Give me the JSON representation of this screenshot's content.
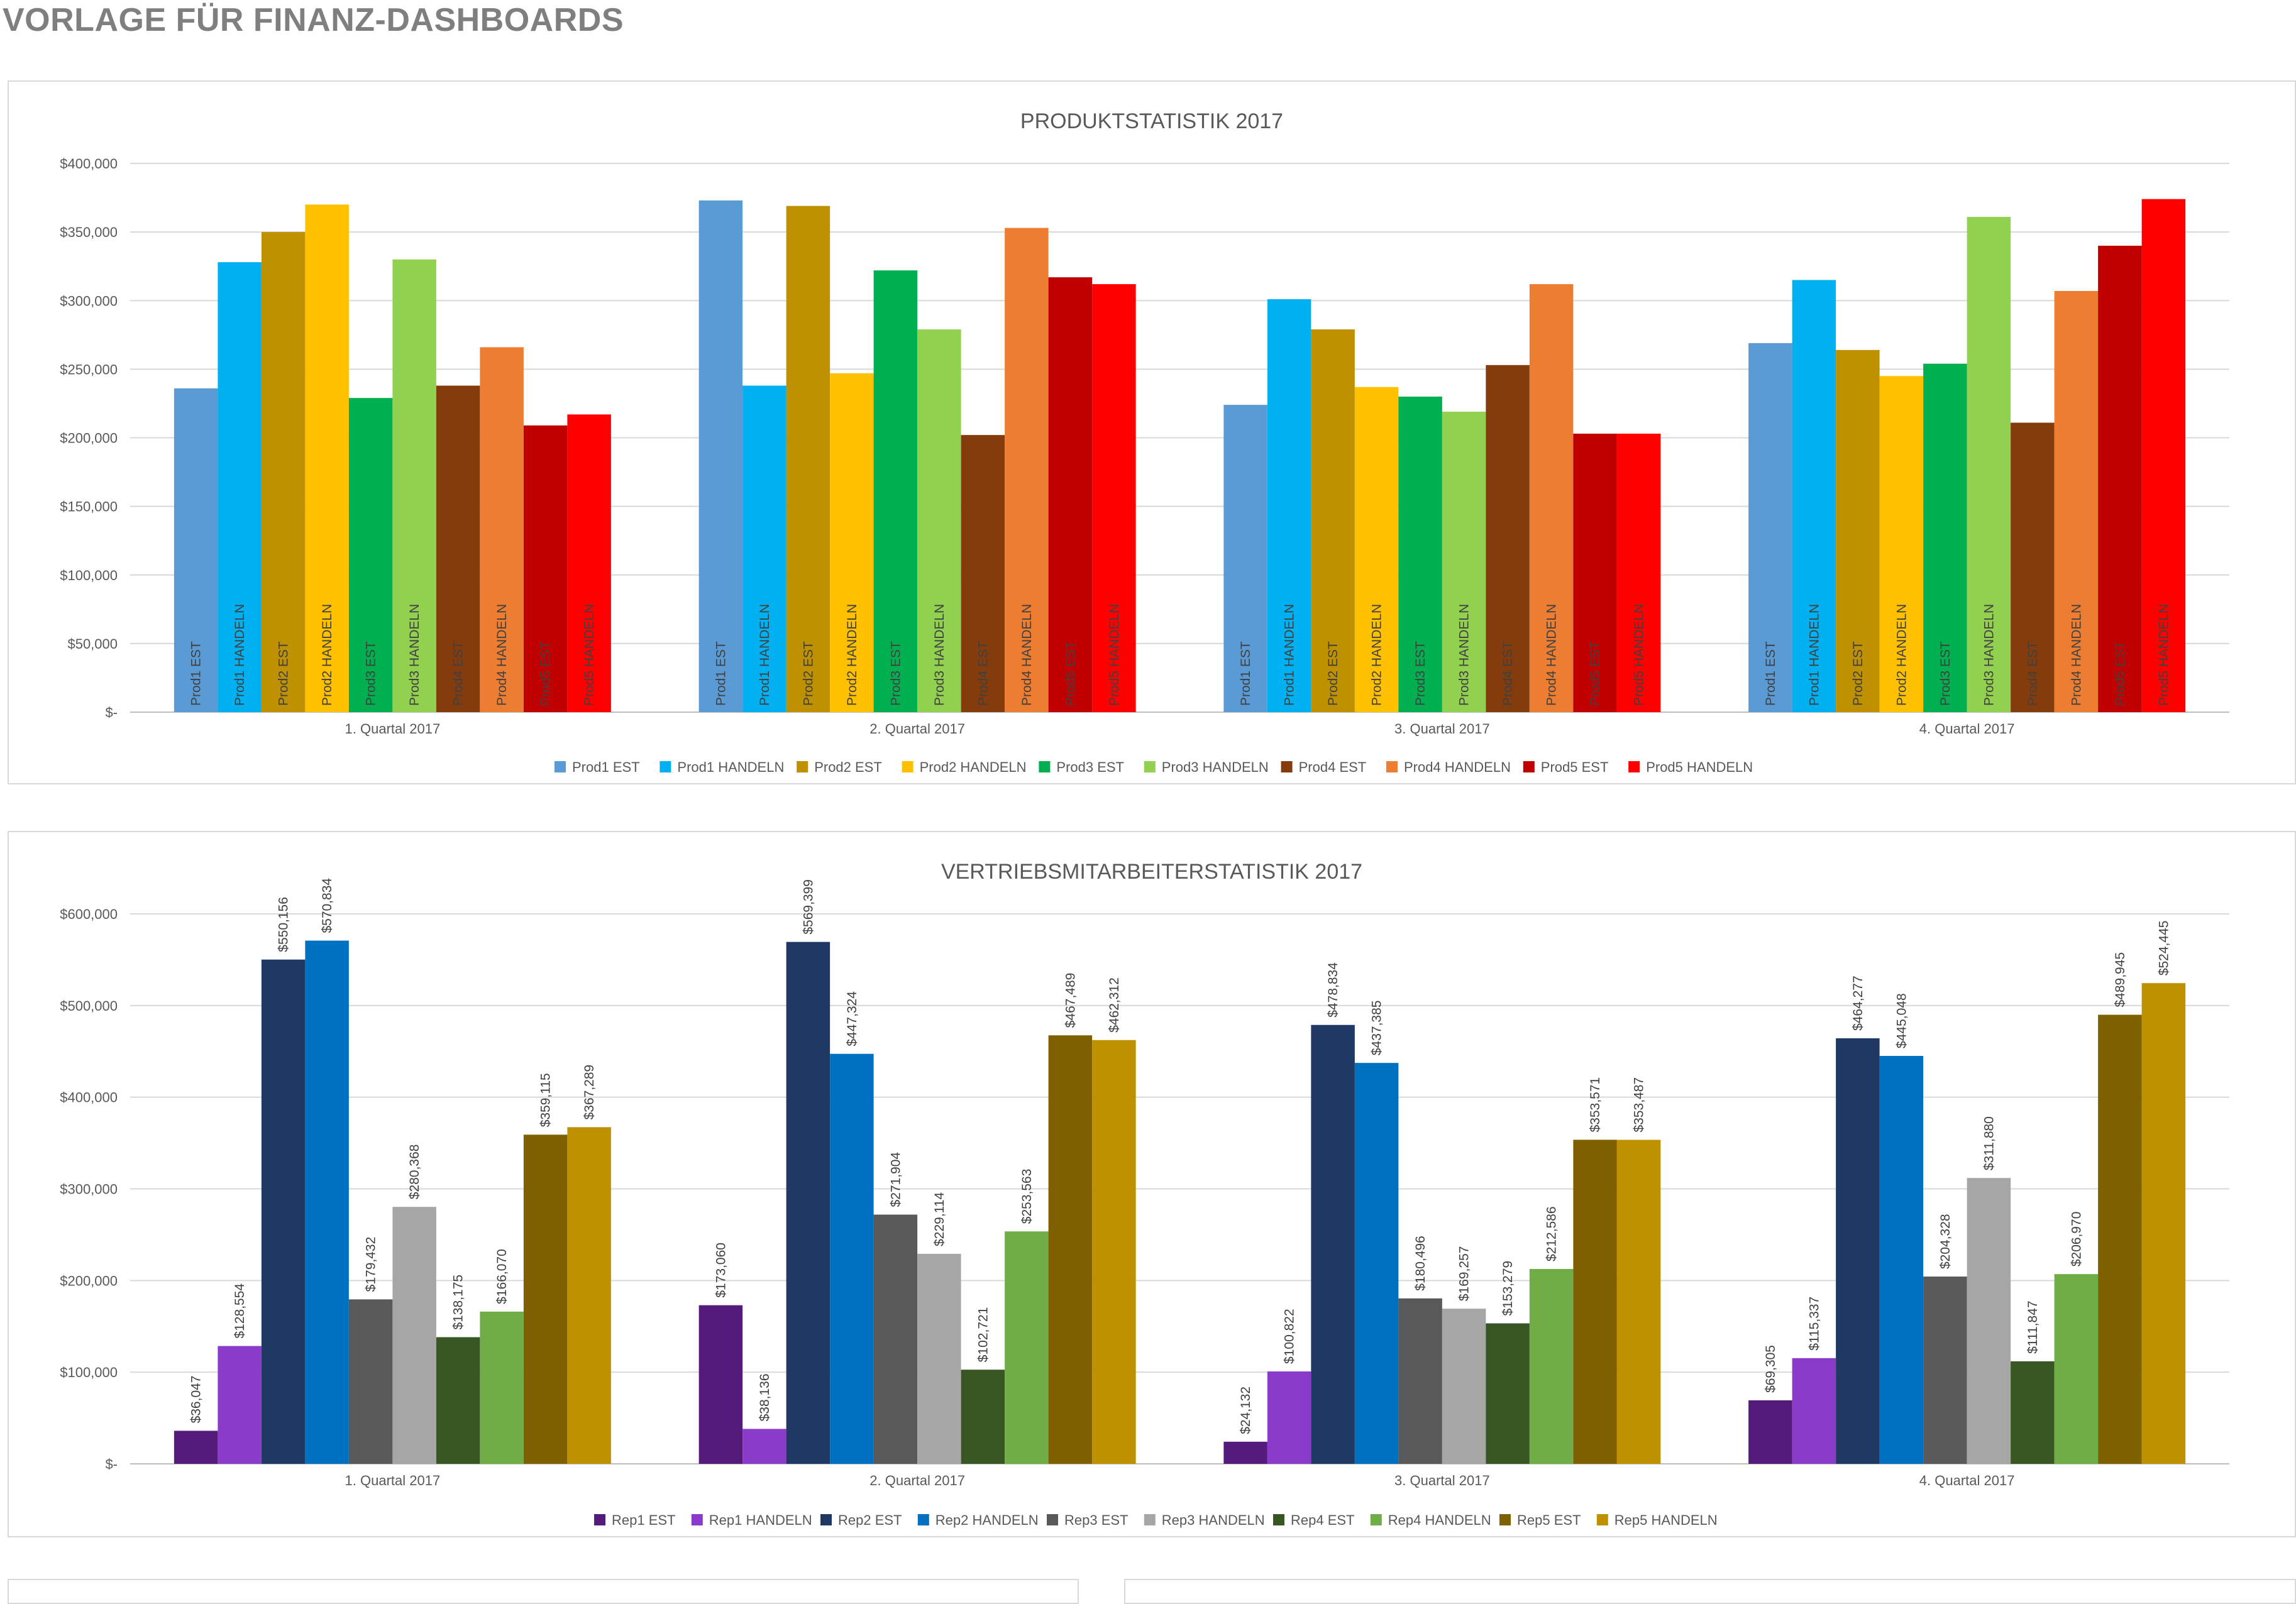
{
  "page": {
    "title": "VORLAGE FÜR FINANZ-DASHBOARDS"
  },
  "chart_data": [
    {
      "type": "bar",
      "title": "PRODUKTSTATISTIK 2017",
      "xlabel": "",
      "ylabel": "",
      "ylim": [
        0,
        400000
      ],
      "yticks": [
        0,
        50000,
        100000,
        150000,
        200000,
        250000,
        300000,
        350000,
        400000
      ],
      "ytick_labels": [
        "$-",
        "$50,000",
        "$100,000",
        "$150,000",
        "$200,000",
        "$250,000",
        "$300,000",
        "$350,000",
        "$400,000"
      ],
      "grid": true,
      "legend": "bottom",
      "bar_labels": "series-name",
      "categories": [
        "1. Quartal 2017",
        "2. Quartal 2017",
        "3. Quartal 2017",
        "4. Quartal 2017"
      ],
      "series": [
        {
          "name": "Prod1 EST",
          "color": "#5B9BD5",
          "values": [
            236000,
            373000,
            224000,
            269000
          ]
        },
        {
          "name": "Prod1 HANDELN",
          "color": "#00B0F0",
          "values": [
            328000,
            238000,
            301000,
            315000
          ]
        },
        {
          "name": "Prod2 EST",
          "color": "#BF9000",
          "values": [
            350000,
            369000,
            279000,
            264000
          ]
        },
        {
          "name": "Prod2 HANDELN",
          "color": "#FFC000",
          "values": [
            370000,
            247000,
            237000,
            245000
          ]
        },
        {
          "name": "Prod3 EST",
          "color": "#00B050",
          "values": [
            229000,
            322000,
            230000,
            254000
          ]
        },
        {
          "name": "Prod3 HANDELN",
          "color": "#92D050",
          "values": [
            330000,
            279000,
            219000,
            361000
          ]
        },
        {
          "name": "Prod4 EST",
          "color": "#843C0C",
          "values": [
            238000,
            202000,
            253000,
            211000
          ]
        },
        {
          "name": "Prod4 HANDELN",
          "color": "#ED7D31",
          "values": [
            266000,
            353000,
            312000,
            307000
          ]
        },
        {
          "name": "Prod5 EST",
          "color": "#C00000",
          "values": [
            209000,
            317000,
            203000,
            340000
          ]
        },
        {
          "name": "Prod5 HANDELN",
          "color": "#FF0000",
          "values": [
            217000,
            312000,
            203000,
            374000
          ]
        }
      ]
    },
    {
      "type": "bar",
      "title": "VERTRIEBSMITARBEITERSTATISTIK 2017",
      "xlabel": "",
      "ylabel": "",
      "ylim": [
        0,
        600000
      ],
      "yticks": [
        0,
        100000,
        200000,
        300000,
        400000,
        500000,
        600000
      ],
      "ytick_labels": [
        "$-",
        "$100,000",
        "$200,000",
        "$300,000",
        "$400,000",
        "$500,000",
        "$600,000"
      ],
      "grid": true,
      "legend": "bottom",
      "bar_labels": "value",
      "categories": [
        "1. Quartal 2017",
        "2. Quartal 2017",
        "3. Quartal 2017",
        "4. Quartal 2017"
      ],
      "series": [
        {
          "name": "Rep1 EST",
          "color": "#541B7A",
          "values": [
            36047,
            173060,
            24132,
            69305
          ],
          "labels": [
            "$36,047",
            "$173,060",
            "$24,132",
            "$69,305"
          ]
        },
        {
          "name": "Rep1 HANDELN",
          "color": "#8B3BC9",
          "values": [
            128554,
            38136,
            100822,
            115337
          ],
          "labels": [
            "$128,554",
            "$38,136",
            "$100,822",
            "$115,337"
          ]
        },
        {
          "name": "Rep2 EST",
          "color": "#1F3864",
          "values": [
            550156,
            569399,
            478834,
            464277
          ],
          "labels": [
            "$550,156",
            "$569,399",
            "$478,834",
            "$464,277"
          ]
        },
        {
          "name": "Rep2 HANDELN",
          "color": "#0070C0",
          "values": [
            570834,
            447324,
            437385,
            445048
          ],
          "labels": [
            "$570,834",
            "$447,324",
            "$437,385",
            "$445,048"
          ]
        },
        {
          "name": "Rep3 EST",
          "color": "#595959",
          "values": [
            179432,
            271904,
            180496,
            204328
          ],
          "labels": [
            "$179,432",
            "$271,904",
            "$180,496",
            "$204,328"
          ]
        },
        {
          "name": "Rep3 HANDELN",
          "color": "#A6A6A6",
          "values": [
            280368,
            229114,
            169257,
            311880
          ],
          "labels": [
            "$280,368",
            "$229,114",
            "$169,257",
            "$311,880"
          ]
        },
        {
          "name": "Rep4 EST",
          "color": "#375623",
          "values": [
            138175,
            102721,
            153279,
            111847
          ],
          "labels": [
            "$138,175",
            "$102,721",
            "$153,279",
            "$111,847"
          ]
        },
        {
          "name": "Rep4 HANDELN",
          "color": "#70AD47",
          "values": [
            166070,
            253563,
            212586,
            206970
          ],
          "labels": [
            "$166,070",
            "$253,563",
            "$212,586",
            "$206,970"
          ]
        },
        {
          "name": "Rep5 EST",
          "color": "#7F6000",
          "values": [
            359115,
            467489,
            353571,
            489945
          ],
          "labels": [
            "$359,115",
            "$467,489",
            "$353,571",
            "$489,945"
          ]
        },
        {
          "name": "Rep5 HANDELN",
          "color": "#BF9000",
          "values": [
            367289,
            462312,
            353487,
            524445
          ],
          "labels": [
            "$367,289",
            "$462,312",
            "$353,487",
            "$524,445"
          ]
        }
      ]
    }
  ]
}
